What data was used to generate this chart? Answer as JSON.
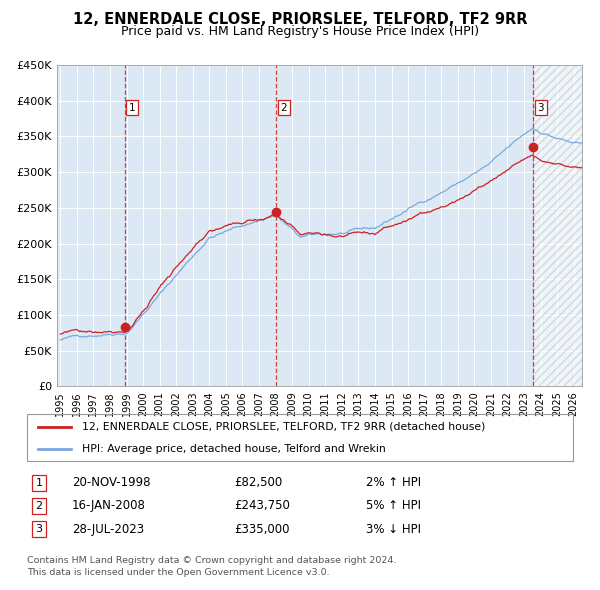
{
  "title": "12, ENNERDALE CLOSE, PRIORSLEE, TELFORD, TF2 9RR",
  "subtitle": "Price paid vs. HM Land Registry's House Price Index (HPI)",
  "ylim": [
    0,
    450000
  ],
  "yticks": [
    0,
    50000,
    100000,
    150000,
    200000,
    250000,
    300000,
    350000,
    400000,
    450000
  ],
  "ytick_labels": [
    "£0",
    "£50K",
    "£100K",
    "£150K",
    "£200K",
    "£250K",
    "£300K",
    "£350K",
    "£400K",
    "£450K"
  ],
  "x_start_year": 1995,
  "x_end_year": 2026,
  "xtick_years": [
    1995,
    1996,
    1997,
    1998,
    1999,
    2000,
    2001,
    2002,
    2003,
    2004,
    2005,
    2006,
    2007,
    2008,
    2009,
    2010,
    2011,
    2012,
    2013,
    2014,
    2015,
    2016,
    2017,
    2018,
    2019,
    2020,
    2021,
    2022,
    2023,
    2024,
    2025,
    2026
  ],
  "bg_color": "#dce9f5",
  "hpi_line_color": "#7aaadd",
  "price_line_color": "#cc2222",
  "sale1_date": 1998.88,
  "sale1_price": 82500,
  "sale2_date": 2008.04,
  "sale2_price": 243750,
  "sale3_date": 2023.57,
  "sale3_price": 335000,
  "legend_line1": "12, ENNERDALE CLOSE, PRIORSLEE, TELFORD, TF2 9RR (detached house)",
  "legend_line2": "HPI: Average price, detached house, Telford and Wrekin",
  "table_entries": [
    {
      "label": "1",
      "date": "20-NOV-1998",
      "price": "£82,500",
      "hpi": "2% ↑ HPI"
    },
    {
      "label": "2",
      "date": "16-JAN-2008",
      "price": "£243,750",
      "hpi": "5% ↑ HPI"
    },
    {
      "label": "3",
      "date": "28-JUL-2023",
      "price": "£335,000",
      "hpi": "3% ↓ HPI"
    }
  ],
  "footer": "Contains HM Land Registry data © Crown copyright and database right 2024.\nThis data is licensed under the Open Government Licence v3.0."
}
